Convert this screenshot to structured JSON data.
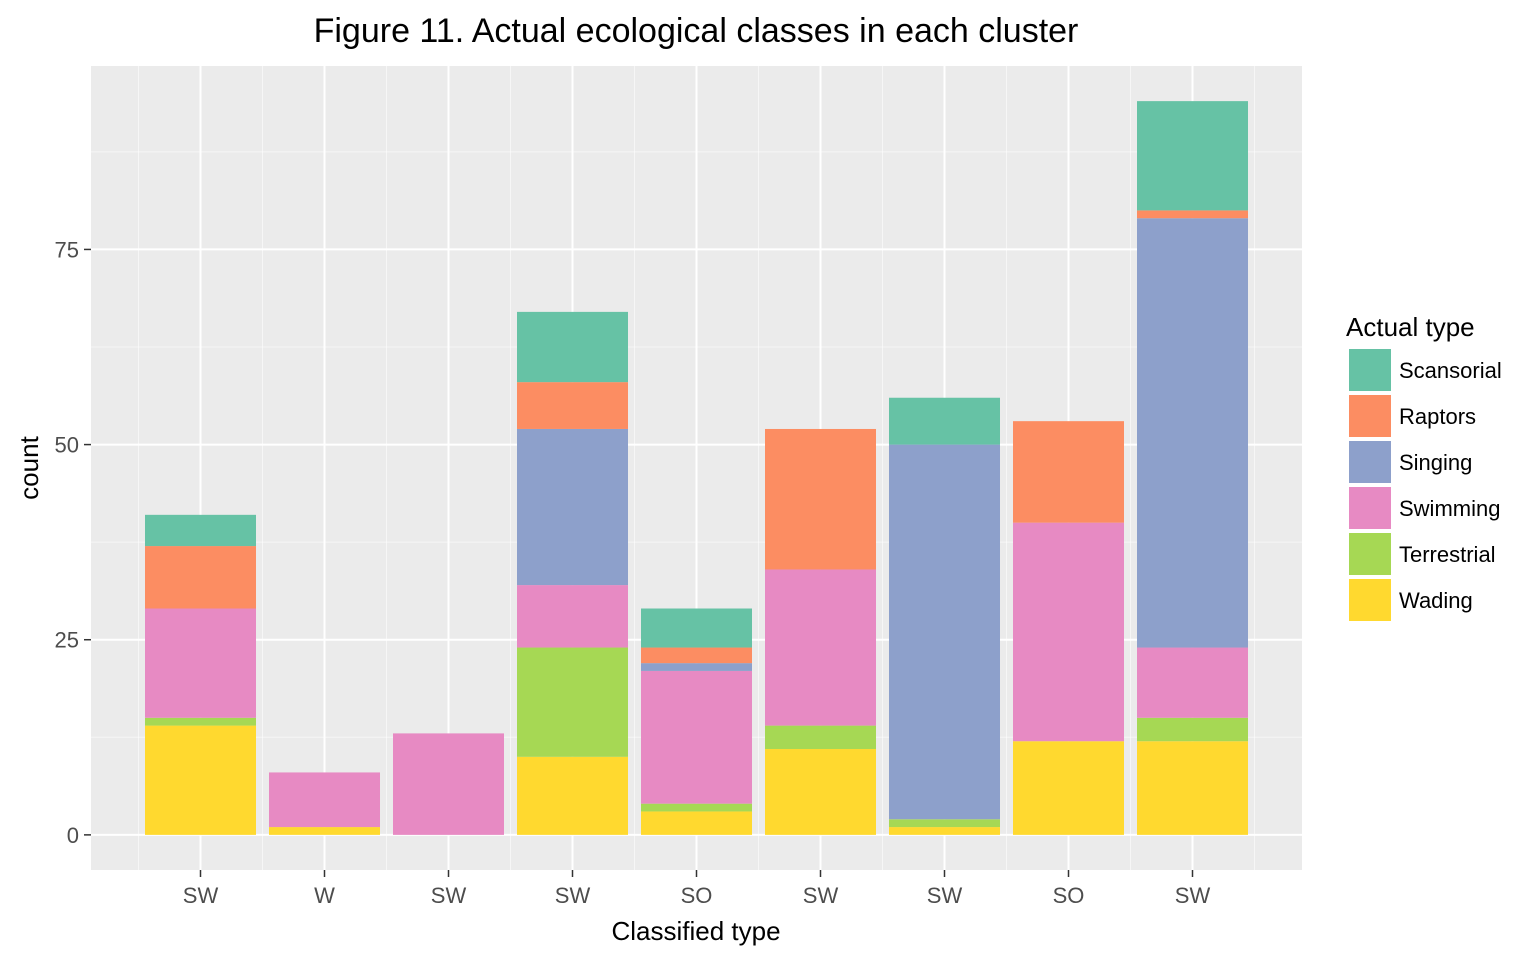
{
  "chart_data": {
    "type": "bar",
    "stacked": true,
    "title": "Figure 11. Actual ecological classes in each cluster",
    "xlabel": "Classified type",
    "ylabel": "count",
    "categories": [
      "SW",
      "W",
      "SW",
      "SW",
      "SO",
      "SW",
      "SW",
      "SO",
      "SW"
    ],
    "ylim": [
      -4.5,
      98.5
    ],
    "yticks": [
      0,
      25,
      50,
      75
    ],
    "grid": true,
    "legend": {
      "title": "Actual type",
      "placement": "right"
    },
    "series": [
      {
        "name": "Wading",
        "color": "#FFD92F",
        "values": [
          14,
          1,
          0,
          10,
          3,
          11,
          1,
          12,
          12
        ]
      },
      {
        "name": "Terrestrial",
        "color": "#A6D854",
        "values": [
          1,
          0,
          0,
          14,
          1,
          3,
          1,
          0,
          3
        ]
      },
      {
        "name": "Swimming",
        "color": "#E78AC3",
        "values": [
          14,
          7,
          13,
          8,
          17,
          20,
          0,
          28,
          9
        ]
      },
      {
        "name": "Singing",
        "color": "#8DA0CB",
        "values": [
          0,
          0,
          0,
          20,
          1,
          0,
          48,
          0,
          55
        ]
      },
      {
        "name": "Raptors",
        "color": "#FC8D62",
        "values": [
          8,
          0,
          0,
          6,
          2,
          18,
          0,
          13,
          1
        ]
      },
      {
        "name": "Scansorial",
        "color": "#66C2A5",
        "values": [
          4,
          0,
          0,
          9,
          5,
          0,
          6,
          0,
          14
        ]
      }
    ],
    "legend_order": [
      "Scansorial",
      "Raptors",
      "Singing",
      "Swimming",
      "Terrestrial",
      "Wading"
    ]
  },
  "colors": {
    "panel_background": "#EBEBEB",
    "grid_major": "#FFFFFF",
    "axis_text": "#4D4D4D",
    "title_text": "#000000"
  }
}
